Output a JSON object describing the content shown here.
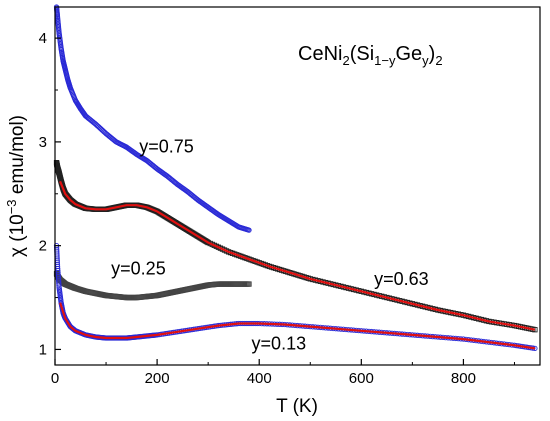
{
  "chart_data": {
    "type": "scatter",
    "title_parts": {
      "prefix": "CeNi",
      "sub1": "2",
      "paren_open": "(Si",
      "sub2": "1−y",
      "mid": "Ge",
      "sub3": "y",
      "paren_close": ")",
      "sub4": "2"
    },
    "xlabel": "T  (K)",
    "ylabel_parts": {
      "pre": "χ  (10",
      "sup": "−3",
      "post": " emu/mol)"
    },
    "xlim": [
      0,
      950
    ],
    "ylim": [
      0.85,
      4.3
    ],
    "xticks": [
      0,
      200,
      400,
      600,
      800
    ],
    "yticks": [
      1,
      2,
      3,
      4
    ],
    "grid": false,
    "series": [
      {
        "name": "y=0.75",
        "color": "#2a2ad6",
        "marker": "circle-open",
        "x": [
          3,
          5,
          8,
          12,
          16,
          20,
          25,
          30,
          40,
          50,
          60,
          80,
          100,
          120,
          140,
          160,
          180,
          200,
          220,
          240,
          260,
          280,
          300,
          320,
          340,
          360,
          380
        ],
        "y": [
          4.3,
          4.2,
          4.05,
          3.9,
          3.78,
          3.7,
          3.6,
          3.52,
          3.4,
          3.32,
          3.25,
          3.17,
          3.08,
          3.0,
          2.95,
          2.88,
          2.82,
          2.74,
          2.67,
          2.59,
          2.52,
          2.44,
          2.37,
          2.3,
          2.24,
          2.18,
          2.15
        ]
      },
      {
        "name": "y=0.63",
        "color": "#222222",
        "marker": "square-open",
        "x": [
          3,
          5,
          8,
          12,
          16,
          20,
          30,
          40,
          60,
          80,
          100,
          120,
          140,
          160,
          180,
          200,
          220,
          240,
          260,
          280,
          300,
          340,
          380,
          420,
          460,
          500,
          550,
          600,
          650,
          700,
          750,
          800,
          850,
          900,
          940
        ],
        "y": [
          2.8,
          2.75,
          2.7,
          2.62,
          2.55,
          2.5,
          2.44,
          2.4,
          2.36,
          2.35,
          2.35,
          2.37,
          2.39,
          2.39,
          2.37,
          2.33,
          2.27,
          2.21,
          2.15,
          2.09,
          2.03,
          1.94,
          1.87,
          1.8,
          1.74,
          1.68,
          1.62,
          1.56,
          1.5,
          1.44,
          1.38,
          1.33,
          1.27,
          1.23,
          1.19
        ]
      },
      {
        "name": "y=0.25",
        "color": "#444444",
        "marker": "square-open",
        "x": [
          3,
          6,
          10,
          15,
          20,
          30,
          40,
          60,
          80,
          100,
          120,
          140,
          160,
          180,
          200,
          220,
          240,
          260,
          280,
          300,
          320,
          340,
          360,
          380
        ],
        "y": [
          1.73,
          1.7,
          1.67,
          1.65,
          1.63,
          1.61,
          1.59,
          1.56,
          1.54,
          1.52,
          1.51,
          1.5,
          1.5,
          1.51,
          1.52,
          1.54,
          1.56,
          1.58,
          1.6,
          1.62,
          1.63,
          1.63,
          1.63,
          1.63
        ]
      },
      {
        "name": "y=0.13",
        "color": "#2a2ad6",
        "marker": "circle-open",
        "x": [
          3,
          5,
          8,
          12,
          16,
          20,
          30,
          40,
          60,
          80,
          100,
          120,
          140,
          160,
          180,
          200,
          240,
          280,
          320,
          360,
          400,
          450,
          500,
          550,
          600,
          650,
          700,
          750,
          800,
          850,
          900,
          940
        ],
        "y": [
          2.0,
          1.8,
          1.6,
          1.45,
          1.35,
          1.3,
          1.22,
          1.18,
          1.14,
          1.12,
          1.11,
          1.11,
          1.11,
          1.12,
          1.13,
          1.14,
          1.17,
          1.2,
          1.23,
          1.25,
          1.25,
          1.24,
          1.22,
          1.2,
          1.18,
          1.16,
          1.14,
          1.12,
          1.1,
          1.07,
          1.04,
          1.01
        ]
      }
    ],
    "fits": [
      {
        "color": "#e01010",
        "x": [
          10,
          20,
          30,
          40,
          60,
          80,
          100,
          120,
          140,
          160,
          180,
          200,
          220,
          240,
          260,
          280,
          300,
          340,
          380,
          420,
          460,
          500,
          550,
          600,
          650,
          700,
          750,
          800,
          850,
          900,
          940
        ],
        "y": [
          2.62,
          2.5,
          2.44,
          2.4,
          2.36,
          2.35,
          2.35,
          2.37,
          2.39,
          2.39,
          2.37,
          2.33,
          2.27,
          2.21,
          2.15,
          2.09,
          2.03,
          1.94,
          1.87,
          1.8,
          1.74,
          1.68,
          1.62,
          1.56,
          1.5,
          1.44,
          1.38,
          1.33,
          1.27,
          1.23,
          1.19
        ]
      },
      {
        "color": "#e01010",
        "x": [
          10,
          20,
          30,
          40,
          60,
          80,
          100,
          120,
          140,
          160,
          180,
          200,
          240,
          280,
          320,
          360,
          400,
          450,
          500,
          550,
          600,
          650,
          700,
          750,
          800,
          850,
          900,
          940
        ],
        "y": [
          1.45,
          1.3,
          1.22,
          1.18,
          1.14,
          1.12,
          1.11,
          1.11,
          1.11,
          1.12,
          1.13,
          1.14,
          1.17,
          1.2,
          1.23,
          1.25,
          1.25,
          1.24,
          1.22,
          1.2,
          1.18,
          1.16,
          1.14,
          1.12,
          1.1,
          1.07,
          1.04,
          1.01
        ]
      }
    ],
    "annotations": [
      {
        "text": "y=0.75",
        "x": 165,
        "y": 2.9
      },
      {
        "text": "y=0.25",
        "x": 110,
        "y": 1.72
      },
      {
        "text": "y=0.63",
        "x": 625,
        "y": 1.62
      },
      {
        "text": "y=0.13",
        "x": 385,
        "y": 1.0
      }
    ]
  }
}
